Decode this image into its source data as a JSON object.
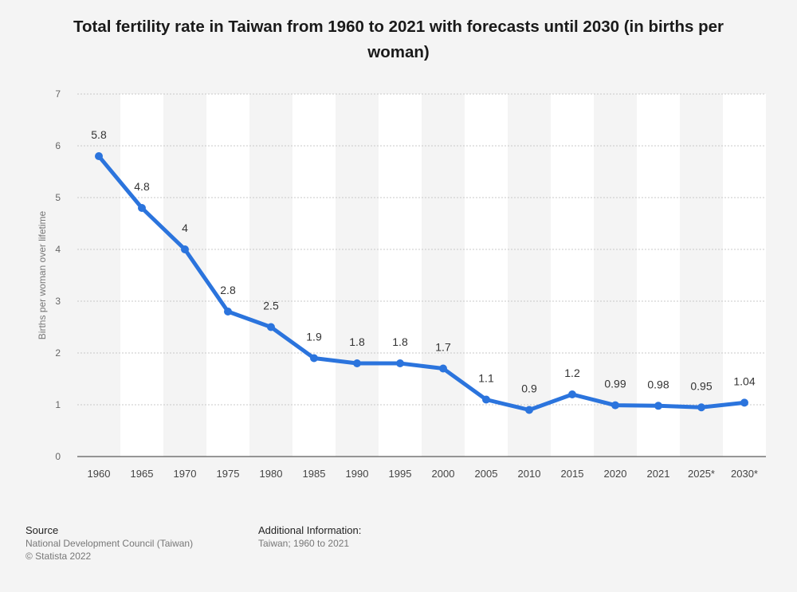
{
  "title": "Total fertility rate in Taiwan from 1960 to 2021 with forecasts until 2030 (in births per woman)",
  "chart_data": {
    "type": "line",
    "title": "Total fertility rate in Taiwan from 1960 to 2021 with forecasts until 2030 (in births per woman)",
    "xlabel": "",
    "ylabel": "Births per woman over lifetime",
    "categories": [
      "1960",
      "1965",
      "1970",
      "1975",
      "1980",
      "1985",
      "1990",
      "1995",
      "2000",
      "2005",
      "2010",
      "2015",
      "2020",
      "2021",
      "2025*",
      "2030*"
    ],
    "values": [
      5.8,
      4.8,
      4,
      2.8,
      2.5,
      1.9,
      1.8,
      1.8,
      1.7,
      1.1,
      0.9,
      1.2,
      0.99,
      0.98,
      0.95,
      1.04
    ],
    "data_labels": [
      "5.8",
      "4.8",
      "4",
      "2.8",
      "2.5",
      "1.9",
      "1.8",
      "1.8",
      "1.7",
      "1.1",
      "0.9",
      "1.2",
      "0.99",
      "0.98",
      "0.95",
      "1.04"
    ],
    "yticks": [
      "0",
      "1",
      "2",
      "3",
      "4",
      "5",
      "6",
      "7"
    ],
    "ylim": [
      0,
      7
    ],
    "grid": true,
    "line_color": "#2b74dd"
  },
  "footer": {
    "source_heading": "Source",
    "source_text": "National Development Council (Taiwan)",
    "copyright": "© Statista 2022",
    "info_heading": "Additional Information:",
    "info_text": "Taiwan; 1960 to 2021"
  }
}
